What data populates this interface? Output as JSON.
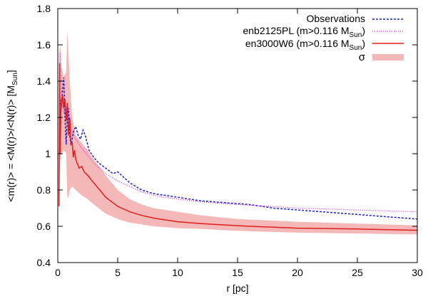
{
  "chart_data": {
    "type": "line",
    "title": "",
    "xlabel": "r [pc]",
    "ylabel": {
      "main": "<m(r)> = <M(r)>/<N(r)> [M",
      "sub": "Sun",
      "close": "]"
    },
    "xlim": [
      0,
      30
    ],
    "ylim": [
      0.4,
      1.8
    ],
    "xticks": [
      0,
      5,
      10,
      15,
      20,
      25,
      30
    ],
    "yticks": [
      0.4,
      0.6,
      0.8,
      1.0,
      1.2,
      1.4,
      1.6,
      1.8
    ],
    "xtick_labels": [
      "0",
      "5",
      "10",
      "15",
      "20",
      "25",
      "30"
    ],
    "ytick_labels": [
      "0.4",
      "0.6",
      "0.8",
      "1",
      "1.2",
      "1.4",
      "1.6",
      "1.8"
    ],
    "grid": false,
    "legend_position": "top-right",
    "legend": [
      {
        "key": "obs",
        "main": "Observations",
        "sub": "",
        "tail": ""
      },
      {
        "key": "enb",
        "main": "enb2125PL (m>0.116 M",
        "sub": "Sun",
        "tail": ")"
      },
      {
        "key": "en",
        "main": "en3000W6 (m>0.116 M",
        "sub": "Sun",
        "tail": ")"
      },
      {
        "key": "sigma",
        "main": "σ",
        "sub": "",
        "tail": ""
      }
    ],
    "series": [
      {
        "name": "Observations",
        "key": "obs",
        "style": "dashed",
        "color": "#1f1fd0",
        "x": [
          0.2,
          0.3,
          0.4,
          0.5,
          0.6,
          0.7,
          0.8,
          0.9,
          1.0,
          1.1,
          1.2,
          1.3,
          1.5,
          1.7,
          1.9,
          2.1,
          2.3,
          2.6,
          3.0,
          3.4,
          3.8,
          4.2,
          4.6,
          5.0,
          5.5,
          6.0,
          7.0,
          8.0,
          9.0,
          10,
          12,
          14,
          16,
          18,
          20,
          22,
          24,
          26,
          28,
          30
        ],
        "y": [
          1.3,
          1.25,
          1.35,
          1.42,
          1.2,
          1.05,
          1.2,
          1.25,
          1.1,
          1.05,
          1.08,
          1.12,
          1.15,
          1.1,
          1.08,
          1.13,
          1.1,
          1.02,
          0.98,
          0.95,
          0.93,
          0.91,
          0.89,
          0.9,
          0.87,
          0.84,
          0.8,
          0.78,
          0.77,
          0.76,
          0.74,
          0.73,
          0.72,
          0.7,
          0.69,
          0.68,
          0.67,
          0.66,
          0.65,
          0.64
        ]
      },
      {
        "name": "enb2125PL (m>0.116 MSun)",
        "key": "enb",
        "style": "dotted",
        "color": "#e020e0",
        "x": [
          0.2,
          0.3,
          0.4,
          0.5,
          0.6,
          0.8,
          1.0,
          1.2,
          1.5,
          2.0,
          2.5,
          3.0,
          4.0,
          5.0,
          6.0,
          7.0,
          8.0,
          10,
          12,
          15,
          20,
          25,
          30
        ],
        "y": [
          1.55,
          1.35,
          1.28,
          1.22,
          1.25,
          1.2,
          1.16,
          1.12,
          1.08,
          1.03,
          0.99,
          0.95,
          0.89,
          0.85,
          0.82,
          0.79,
          0.77,
          0.75,
          0.735,
          0.72,
          0.7,
          0.69,
          0.68
        ]
      },
      {
        "name": "en3000W6 (m>0.116 MSun)",
        "key": "en",
        "style": "solid",
        "color": "#dd1f1f",
        "x": [
          0.1,
          0.15,
          0.2,
          0.25,
          0.3,
          0.4,
          0.5,
          0.6,
          0.7,
          0.8,
          0.9,
          1.0,
          1.1,
          1.2,
          1.3,
          1.4,
          1.5,
          1.6,
          1.8,
          2.0,
          2.2,
          2.5,
          3.0,
          3.5,
          4.0,
          5.0,
          6.0,
          7.0,
          8.0,
          9.0,
          10,
          12,
          14,
          16,
          18,
          20,
          25,
          30
        ],
        "y": [
          0.71,
          1.5,
          1.0,
          1.22,
          1.28,
          1.32,
          1.25,
          1.3,
          1.18,
          1.28,
          1.1,
          1.2,
          1.05,
          1.06,
          0.98,
          1.02,
          0.97,
          0.95,
          0.92,
          0.93,
          0.9,
          0.88,
          0.84,
          0.8,
          0.76,
          0.71,
          0.68,
          0.66,
          0.645,
          0.635,
          0.625,
          0.615,
          0.607,
          0.6,
          0.595,
          0.59,
          0.585,
          0.578
        ]
      }
    ],
    "band": {
      "name": "σ",
      "key": "sigma",
      "color": "#f5b8b8",
      "x": [
        0.1,
        0.2,
        0.3,
        0.5,
        0.7,
        0.8,
        0.9,
        1.0,
        1.2,
        1.5,
        2.0,
        2.5,
        3.0,
        4.0,
        5.0,
        6.0,
        7.0,
        8.0,
        10,
        12,
        15,
        20,
        25,
        30
      ],
      "low": [
        0.7,
        0.95,
        1.0,
        1.02,
        1.0,
        0.76,
        0.76,
        0.8,
        0.82,
        0.8,
        0.77,
        0.75,
        0.72,
        0.67,
        0.64,
        0.62,
        0.61,
        0.6,
        0.59,
        0.585,
        0.575,
        0.565,
        0.56,
        0.555
      ],
      "high": [
        1.55,
        1.6,
        1.48,
        1.42,
        1.45,
        1.68,
        1.55,
        1.4,
        1.2,
        1.1,
        1.06,
        1.02,
        0.97,
        0.88,
        0.8,
        0.75,
        0.72,
        0.7,
        0.68,
        0.66,
        0.64,
        0.625,
        0.615,
        0.605
      ]
    }
  }
}
